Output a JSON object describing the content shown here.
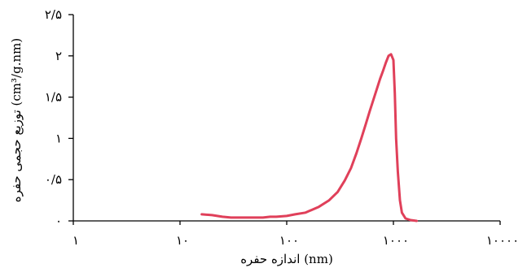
{
  "chart_data": {
    "type": "line",
    "xscale": "log",
    "xlim": [
      1,
      10000
    ],
    "ylim": [
      0,
      2.5
    ],
    "xlabel": "اندازه حفره (nm)",
    "ylabel": "توزیع حجمی حفره (cm³/g.nm)",
    "x_ticks": [
      1,
      10,
      100,
      1000,
      10000
    ],
    "x_tick_labels": [
      "۱",
      "۱۰",
      "۱۰۰",
      "۱۰۰۰",
      "۱۰۰۰۰"
    ],
    "y_ticks": [
      0,
      0.5,
      1,
      1.5,
      2,
      2.5
    ],
    "y_tick_labels": [
      "۰",
      "۰/۵",
      "۱",
      "۱/۵",
      "۲",
      "۲/۵"
    ],
    "grid": false,
    "colors": {
      "line": "#e0405a",
      "axis": "#000000"
    },
    "series": [
      {
        "x": [
          16,
          20,
          25,
          30,
          40,
          50,
          60,
          70,
          80,
          100,
          120,
          150,
          200,
          250,
          300,
          350,
          400,
          450,
          500,
          550,
          600,
          650,
          700,
          750,
          800,
          850,
          900,
          950,
          1000,
          1030,
          1060,
          1100,
          1150,
          1200,
          1300,
          1450,
          1650
        ],
        "y": [
          0.08,
          0.07,
          0.05,
          0.04,
          0.04,
          0.04,
          0.04,
          0.05,
          0.05,
          0.06,
          0.08,
          0.1,
          0.17,
          0.25,
          0.35,
          0.49,
          0.64,
          0.82,
          1.0,
          1.17,
          1.33,
          1.47,
          1.6,
          1.72,
          1.82,
          1.92,
          2.0,
          2.02,
          1.95,
          1.55,
          1.0,
          0.6,
          0.25,
          0.1,
          0.03,
          0.01,
          0.0
        ]
      }
    ]
  }
}
